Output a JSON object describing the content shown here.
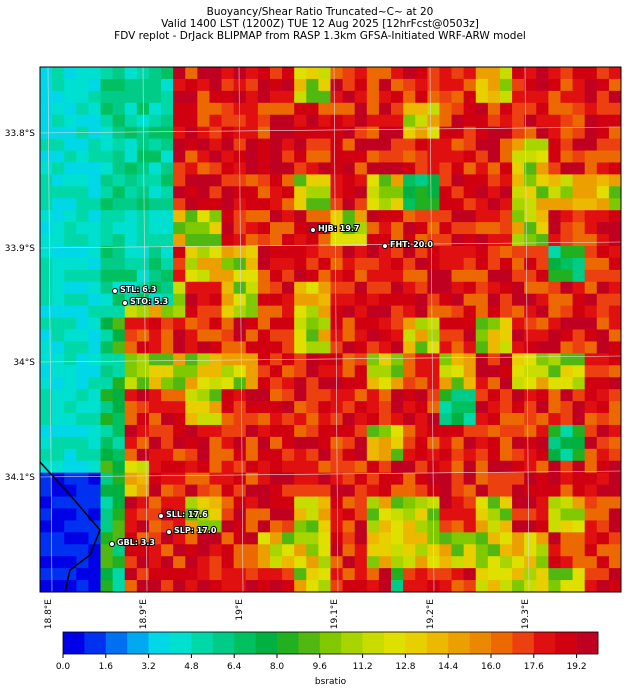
{
  "title_lines": [
    "Buoyancy/Shear Ratio Truncated~C~    at 20",
    "Valid 1400 LST (1200Z) TUE 12 Aug 2025 [12hrFcst@0503z]",
    "FDV replot - DrJack BLIPMAP from RASP 1.3km GFSA-Initiated WRF-ARW model"
  ],
  "lat_labels": [
    "33.8°S",
    "33.9°S",
    "34°S",
    "34.1°S"
  ],
  "lon_labels": [
    "18.8°E",
    "18.9°E",
    "19°E",
    "19.1°E",
    "19.2°E",
    "19.3°E"
  ],
  "stations": [
    "HJB: 19.7",
    "FHT: 20.0",
    "STL: 6.3",
    "STO: 5.3",
    "SLL: 17.6",
    "SLP: 17.0",
    "GBL: 3.3"
  ],
  "colorbar": {
    "label": "bsratio",
    "lim": [
      0,
      20
    ],
    "ticks": [
      {
        "value": 0,
        "label": "0.0"
      },
      {
        "value": 1.6,
        "label": "1.6"
      },
      {
        "value": 3.2,
        "label": "3.2"
      },
      {
        "value": 4.8,
        "label": "4.8"
      },
      {
        "value": 6.4,
        "label": "6.4"
      },
      {
        "value": 8,
        "label": "8.0"
      },
      {
        "value": 9.6,
        "label": "9.6"
      },
      {
        "value": 11.2,
        "label": "11.2"
      },
      {
        "value": 12.8,
        "label": "12.8"
      },
      {
        "value": 14.4,
        "label": "14.4"
      },
      {
        "value": 16,
        "label": "16.0"
      },
      {
        "value": 17.6,
        "label": "17.6"
      },
      {
        "value": 19.2,
        "label": "19.2"
      }
    ],
    "colors": [
      "#0000e6",
      "#0030f0",
      "#0070f0",
      "#00a8f0",
      "#00d8e8",
      "#00e0d0",
      "#00d8a8",
      "#00cc88",
      "#00c060",
      "#00b040",
      "#20b020",
      "#50b810",
      "#80c800",
      "#a8d400",
      "#c8dc00",
      "#e0e000",
      "#e8d000",
      "#ecb800",
      "#eca000",
      "#ec8800",
      "#ec6800",
      "#ec4010",
      "#e01010",
      "#d00010",
      "#c00020"
    ]
  }
}
